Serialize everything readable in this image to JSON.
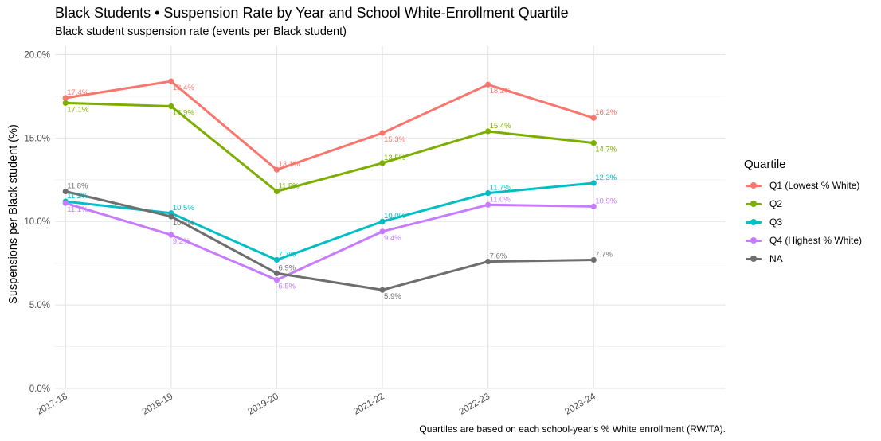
{
  "chart_data": {
    "type": "line",
    "title": "Black Students • Suspension Rate by Year and School White-Enrollment Quartile",
    "subtitle": "Black student suspension rate (events per Black student)",
    "xlabel": "",
    "ylabel": "Suspensions per Black student (%)",
    "caption": "Quartiles are based on each school-year’s % White enrollment (RW/TA).",
    "categories": [
      "2017-18",
      "2018-19",
      "2019-20",
      "2021-22",
      "2022-23",
      "2023-24"
    ],
    "x_index": [
      0,
      1,
      2,
      3,
      4,
      5
    ],
    "x_range": [
      -0.1,
      6.25
    ],
    "ylim": [
      0,
      20.5
    ],
    "y_ticks": [
      0,
      5,
      10,
      15,
      20
    ],
    "y_tick_labels": [
      "0.0%",
      "5.0%",
      "10.0%",
      "15.0%",
      "20.0%"
    ],
    "grid": true,
    "legend_title": "Quartile",
    "legend_position": "right",
    "series": [
      {
        "name": "Q1 (Lowest % White)",
        "color": "#F8766D",
        "values": [
          17.4,
          18.4,
          13.1,
          15.3,
          18.2,
          16.2
        ],
        "labels": [
          "17.4%",
          "18.4%",
          "13.1%",
          "15.3%",
          "18.2%",
          "16.2%"
        ],
        "label_side": [
          "above",
          "below",
          "above",
          "below",
          "below",
          "above"
        ]
      },
      {
        "name": "Q2",
        "color": "#7CAE00",
        "values": [
          17.1,
          16.9,
          11.8,
          13.5,
          15.4,
          14.7
        ],
        "labels": [
          "17.1%",
          "16.9%",
          "11.8%",
          "13.5%",
          "15.4%",
          "14.7%"
        ],
        "label_side": [
          "below",
          "below",
          "above",
          "above",
          "above",
          "below"
        ]
      },
      {
        "name": "Q3",
        "color": "#00BFC4",
        "values": [
          11.2,
          10.5,
          7.7,
          10.0,
          11.7,
          12.3
        ],
        "labels": [
          "11.2%",
          "10.5%",
          "7.7%",
          "10.0%",
          "11.7%",
          "12.3%"
        ],
        "label_side": [
          "above",
          "above",
          "above",
          "above",
          "above",
          "above"
        ]
      },
      {
        "name": "Q4 (Highest % White)",
        "color": "#C77CFF",
        "values": [
          11.1,
          9.2,
          6.5,
          9.4,
          11.0,
          10.9
        ],
        "labels": [
          "11.1%",
          "9.2%",
          "6.5%",
          "9.4%",
          "11.0%",
          "10.9%"
        ],
        "label_side": [
          "below",
          "below",
          "below",
          "below",
          "above",
          "above"
        ]
      },
      {
        "name": "NA",
        "color": "#6E6E6E",
        "values": [
          11.8,
          10.3,
          6.9,
          5.9,
          7.6,
          7.7
        ],
        "labels": [
          "11.8%",
          "10.3%",
          "6.9%",
          "5.9%",
          "7.6%",
          "7.7%"
        ],
        "label_side": [
          "above",
          "below",
          "above",
          "below",
          "above",
          "above"
        ]
      }
    ]
  }
}
